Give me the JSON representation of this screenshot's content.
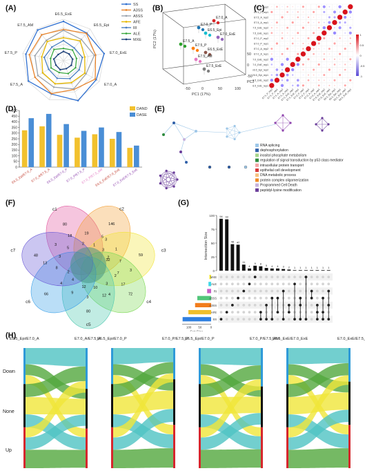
{
  "panels": {
    "a": "(A)",
    "b": "(B)",
    "c": "(C)",
    "d": "(D)",
    "e": "(E)",
    "f": "(F)",
    "g": "(G)",
    "h": "(H)"
  },
  "panel_a": {
    "axes": [
      "E6.5_ExE",
      "E6.5_Epi",
      "E7.0_ExE",
      "E7.0_A",
      "E7.0_P",
      "E7.5_ExE",
      "E7.5_A",
      "E7.5_P",
      "E7.5_AM"
    ],
    "legend": [
      {
        "name": "SS",
        "color": "#2e6fd0"
      },
      {
        "name": "A3SS",
        "color": "#e8832a"
      },
      {
        "name": "A5SS",
        "color": "#9aa3ad"
      },
      {
        "name": "AFE",
        "color": "#e6b800"
      },
      {
        "name": "RI",
        "color": "#4a7fc1"
      },
      {
        "name": "ALE",
        "color": "#3aa83f"
      },
      {
        "name": "MXE",
        "color": "#1b3f7a"
      }
    ],
    "levels": [
      0.95,
      0.82,
      0.7,
      0.58,
      0.45,
      0.33,
      0.22
    ]
  },
  "panel_b": {
    "axis_labels": [
      "PC1 (17%)",
      "PC2 (17%)",
      "PC3 (7%)"
    ],
    "ticks_pc1": [
      "-50",
      "0",
      "50",
      "100"
    ],
    "ticks_pc3": [
      "-50",
      "0",
      "50"
    ],
    "points": [
      {
        "label": "E7.0_A",
        "color": "#d62728"
      },
      {
        "label": "E7.0_P",
        "color": "#1f77b4"
      },
      {
        "label": "E6.5_Epi",
        "color": "#17becf"
      },
      {
        "label": "E7.0_ExE",
        "color": "#9467bd"
      },
      {
        "label": "E7.5_A",
        "color": "#2ca02c"
      },
      {
        "label": "E7.5_P",
        "color": "#ff7f0e"
      },
      {
        "label": "E6.5_ExE",
        "color": "#8c564b"
      },
      {
        "label": "E7.5_AM",
        "color": "#e377c2"
      },
      {
        "label": "E7.5_ExE",
        "color": "#7f7f7f"
      }
    ]
  },
  "panel_c": {
    "rows": [
      "E7.5_P_rep2",
      "E7.5_P_rep1",
      "E7.5_A_rep2",
      "E7.5_A_rep1",
      "E7.5_ExE_rep2",
      "E7.5_ExE_rep1",
      "E7.0_P_rep2",
      "E7.0_P_rep1",
      "E7.0_A_rep2",
      "E7.0_A_rep1",
      "E7.0_ExE_rep2",
      "E7.0_ExE_rep1",
      "E6.5_Epi_rep2",
      "E6.5_Epi_rep1",
      "E6.5_ExE_rep2",
      "E6.5_ExE_rep1"
    ],
    "scale_ticks": [
      "1",
      "0.5",
      "0",
      "-0.5",
      "-1"
    ]
  },
  "panel_d": {
    "legend": [
      {
        "name": "DAND",
        "color": "#f2c12e"
      },
      {
        "name": "DASE",
        "color": "#4a8ed6"
      }
    ],
    "y_ticks": [
      "0",
      "50",
      "100",
      "150",
      "200",
      "250",
      "300",
      "350",
      "400",
      "450",
      "500"
    ],
    "categories": [
      "E6.5_Epi/E7.0_A",
      "E7.0_A/E7.5_A",
      "E6.5_Epi/E7.0_P",
      "E7.0_P/E7.5_P",
      "E7.0_P/E7.5_AM",
      "E6.5_ExE/E7.0_ExE",
      "E7.0_ExE/E7.5_ExE"
    ],
    "category_colors": [
      "#c0392b",
      "#c0392b",
      "#8e44ad",
      "#8e44ad",
      "#e377c2",
      "#c0392b",
      "#8e44ad"
    ]
  },
  "chart_data": {
    "type": "bar",
    "categories": [
      "E6.5_Epi/E7.0_A",
      "E7.0_A/E7.5_A",
      "E6.5_Epi/E7.0_P",
      "E7.0_P/E7.5_P",
      "E7.0_P/E7.5_AM",
      "E6.5_ExE/E7.0_ExE",
      "E7.0_ExE/E7.5_ExE"
    ],
    "series": [
      {
        "name": "DAND",
        "values": [
          325,
          360,
          285,
          260,
          290,
          250,
          170
        ]
      },
      {
        "name": "DASE",
        "values": [
          432,
          470,
          380,
          320,
          350,
          310,
          190
        ]
      }
    ],
    "ylim": [
      0,
      500
    ]
  },
  "panel_e": {
    "legend": [
      {
        "name": "RNA splicing",
        "color": "#9ec7e8"
      },
      {
        "name": "dephosphorylation",
        "color": "#2f5fa8"
      },
      {
        "name": "inositol phosphate metabolism",
        "color": "#a6d58b"
      },
      {
        "name": "regulation of signal transduction by p53 class mediator",
        "color": "#2e8b3e"
      },
      {
        "name": "intracellular protein transport",
        "color": "#f4a6a6"
      },
      {
        "name": "epithelial cell development",
        "color": "#d63a3a"
      },
      {
        "name": "DNA metabolic process",
        "color": "#f7c27e"
      },
      {
        "name": "protein complex oligomerization",
        "color": "#f08a24"
      },
      {
        "name": "Programmed Cell Death",
        "color": "#c7b3dd"
      },
      {
        "name": "peptidyl-lysine modification",
        "color": "#6a3d9a"
      }
    ]
  },
  "panel_f": {
    "sets": [
      "c1",
      "c2",
      "c3",
      "c4",
      "c5",
      "c6",
      "c7"
    ],
    "numbers": [
      "80",
      "146",
      "59",
      "72",
      "80",
      "66",
      "48",
      "5",
      "2",
      "7",
      "4",
      "12",
      "4",
      "13",
      "5",
      "19",
      "3",
      "7",
      "17",
      "10",
      "9",
      "2",
      "3",
      "18",
      "1",
      "1",
      "3",
      "3",
      "3",
      "4",
      "8",
      "3",
      "2",
      "3",
      "32",
      "2",
      "12"
    ]
  },
  "panel_g": {
    "y_title": "Intersection Size",
    "x_title": "Set Size",
    "y_ticks": [
      "0",
      "25",
      "50",
      "75",
      "100"
    ],
    "x_ticks": [
      "100",
      "50",
      "0"
    ],
    "bars": [
      {
        "value": 94,
        "label": "94"
      },
      {
        "value": 93,
        "label": "93"
      },
      {
        "value": 48,
        "label": "48"
      },
      {
        "value": 47,
        "label": "47"
      },
      {
        "value": 11,
        "label": "11"
      },
      {
        "value": 4,
        "label": "4"
      },
      {
        "value": 9,
        "label": "9"
      },
      {
        "value": 8,
        "label": "8"
      },
      {
        "value": 5,
        "label": "5"
      },
      {
        "value": 4,
        "label": "4"
      },
      {
        "value": 4,
        "label": "4"
      },
      {
        "value": 3,
        "label": "3"
      },
      {
        "value": 2,
        "label": "2"
      },
      {
        "value": 1,
        "label": "1"
      },
      {
        "value": 1,
        "label": "1"
      },
      {
        "value": 1,
        "label": "1"
      },
      {
        "value": 1,
        "label": "1"
      },
      {
        "value": 1,
        "label": "1"
      },
      {
        "value": 1,
        "label": "1"
      },
      {
        "value": 1,
        "label": "1"
      }
    ],
    "sets": [
      {
        "name": "MXE",
        "size": 8,
        "color": "#f2e43a"
      },
      {
        "name": "ALE",
        "size": 12,
        "color": "#3fd8e8"
      },
      {
        "name": "RI",
        "size": 18,
        "color": "#c85ec8"
      },
      {
        "name": "A5SS",
        "size": 62,
        "color": "#52c67a"
      },
      {
        "name": "A3SS",
        "size": 72,
        "color": "#f27d1c"
      },
      {
        "name": "AFE",
        "size": 102,
        "color": "#f0bf2c"
      },
      {
        "name": "SS",
        "size": 128,
        "color": "#2f7fe0"
      }
    ]
  },
  "panel_h": {
    "panels": [
      {
        "left": "E6.5_Epi/E7.0_A",
        "right": "E7.0_A/E7.5_A"
      },
      {
        "left": "E6.5_Epi/E7.0_P",
        "right": "E7.0_P/E7.5_P"
      },
      {
        "left": "E6.5_Epi/E7.0_P",
        "right": "E7.0_P/E7.5_AM"
      },
      {
        "left": "E6.5_ExE/E7.0_ExE",
        "right": "E7.0_ExE/E7.5_ExE"
      }
    ],
    "row_labels": [
      "Down",
      "None",
      "Up"
    ]
  }
}
